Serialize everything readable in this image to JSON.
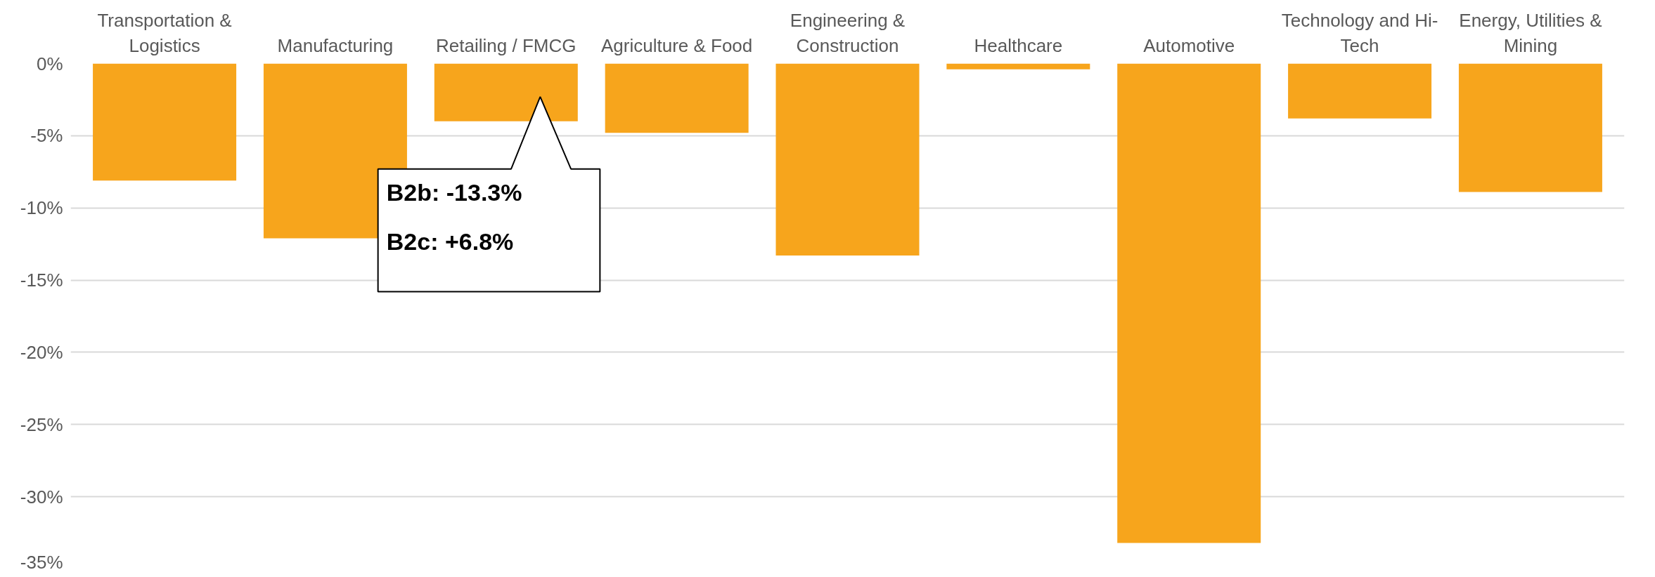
{
  "chart_data": {
    "type": "bar",
    "categories": [
      "Transportation & Logistics",
      "Manufacturing",
      "Retailing / FMCG",
      "Agriculture & Food",
      "Engineering & Construction",
      "Healthcare",
      "Automotive",
      "Technology and Hi-Tech",
      "Energy, Utilities & Mining"
    ],
    "values": [
      -8.1,
      -12.1,
      -4.0,
      -4.8,
      -13.3,
      -0.4,
      -33.2,
      -3.8,
      -8.9
    ],
    "color": "#f7a51c",
    "ylim": [
      -35,
      0
    ],
    "yticks": [
      {
        "value": 0,
        "label": "0%"
      },
      {
        "value": -5,
        "label": "-5%"
      },
      {
        "value": -10,
        "label": "-10%"
      },
      {
        "value": -15,
        "label": "-15%"
      },
      {
        "value": -20,
        "label": "-20%"
      },
      {
        "value": -25,
        "label": "-25%"
      },
      {
        "value": -30,
        "label": "-30%"
      },
      {
        "value": -35,
        "label": "-35%"
      }
    ],
    "grid": "y",
    "annotations": [
      {
        "text": "B2b: -13.3%\nB2c: +6.8%",
        "x": "Retailing / FMCG",
        "y": -4.0
      }
    ]
  }
}
